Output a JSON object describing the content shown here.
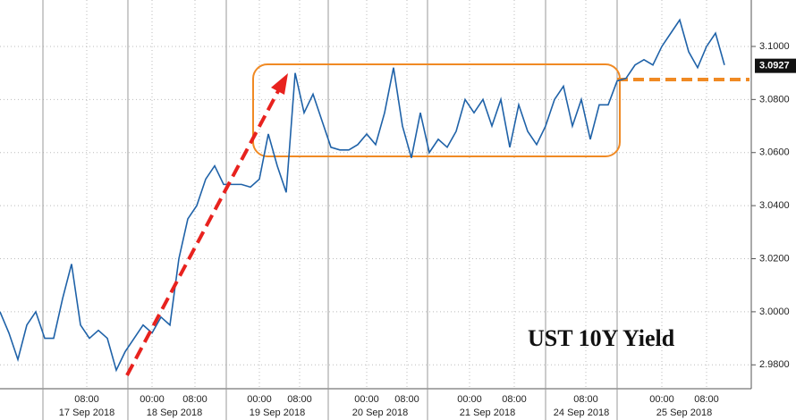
{
  "chart_data": {
    "type": "line",
    "title": "UST 10Y Yield",
    "x": [
      0,
      1,
      2,
      3,
      4,
      5,
      6,
      7,
      8,
      9,
      10,
      11,
      12,
      13,
      14,
      15,
      16,
      17,
      18,
      19,
      20,
      21,
      22,
      23,
      24,
      25,
      26,
      27,
      28,
      29,
      30,
      31,
      32,
      33,
      34,
      35,
      36,
      37,
      38,
      39,
      40,
      41,
      42,
      43,
      44,
      45,
      46,
      47,
      48,
      49,
      50,
      51,
      52,
      53,
      54,
      55,
      56,
      57,
      58,
      59,
      60,
      61,
      62,
      63,
      64,
      65,
      66,
      67,
      68,
      69,
      70,
      71,
      72,
      73,
      74,
      75,
      76,
      77,
      78,
      79,
      80,
      81
    ],
    "series": [
      {
        "name": "UST 10Y Yield",
        "color": "#1f62a8",
        "values": [
          3.0,
          2.992,
          2.982,
          2.995,
          3.0,
          2.99,
          2.99,
          3.005,
          3.018,
          2.995,
          2.99,
          2.993,
          2.99,
          2.978,
          2.985,
          2.99,
          2.995,
          2.992,
          2.998,
          2.995,
          3.02,
          3.035,
          3.04,
          3.05,
          3.055,
          3.048,
          3.048,
          3.048,
          3.047,
          3.05,
          3.067,
          3.055,
          3.045,
          3.09,
          3.075,
          3.082,
          3.072,
          3.062,
          3.061,
          3.061,
          3.063,
          3.067,
          3.063,
          3.075,
          3.092,
          3.07,
          3.058,
          3.075,
          3.06,
          3.065,
          3.062,
          3.068,
          3.08,
          3.075,
          3.08,
          3.07,
          3.08,
          3.062,
          3.078,
          3.068,
          3.063,
          3.07,
          3.08,
          3.085,
          3.07,
          3.08,
          3.065,
          3.078,
          3.078,
          3.087,
          3.088,
          3.093,
          3.095,
          3.093,
          3.1,
          3.105,
          3.11,
          3.098,
          3.092,
          3.1,
          3.105,
          3.093
        ]
      }
    ],
    "last_value": 3.0927,
    "xlim": [
      0,
      84
    ],
    "xticks": [
      {
        "value": 9.7,
        "label": "08:00"
      },
      {
        "value": 17,
        "label": "00:00"
      },
      {
        "value": 21.8,
        "label": "08:00"
      },
      {
        "value": 29,
        "label": "00:00"
      },
      {
        "value": 33.5,
        "label": "08:00"
      },
      {
        "value": 41,
        "label": "00:00"
      },
      {
        "value": 45.5,
        "label": "08:00"
      },
      {
        "value": 52.5,
        "label": "00:00"
      },
      {
        "value": 57.5,
        "label": "08:00"
      },
      {
        "value": 65.5,
        "label": "08:00"
      },
      {
        "value": 74,
        "label": "00:00"
      },
      {
        "value": 79,
        "label": "08:00"
      }
    ],
    "xticks_dates": [
      {
        "value": 9.7,
        "label": "17 Sep 2018"
      },
      {
        "value": 19.5,
        "label": "18 Sep 2018"
      },
      {
        "value": 31,
        "label": "19 Sep 2018"
      },
      {
        "value": 42.5,
        "label": "20 Sep 2018"
      },
      {
        "value": 54.5,
        "label": "21 Sep 2018"
      },
      {
        "value": 65,
        "label": "24 Sep 2018"
      },
      {
        "value": 76.5,
        "label": "25 Sep 2018"
      }
    ],
    "xticks_sessions": [
      4.8,
      14.3,
      25.3,
      36.7,
      47.8,
      61,
      69
    ],
    "ylim": [
      2.971,
      3.1175
    ],
    "yticks": [
      {
        "value": 2.98,
        "label": "2.9800"
      },
      {
        "value": 3.0,
        "label": "3.0000"
      },
      {
        "value": 3.02,
        "label": "3.0200"
      },
      {
        "value": 3.04,
        "label": "3.0400"
      },
      {
        "value": 3.06,
        "label": "3.0600"
      },
      {
        "value": 3.08,
        "label": "3.0800"
      },
      {
        "value": 3.1,
        "label": "3.1000"
      }
    ],
    "grid": true
  }
}
